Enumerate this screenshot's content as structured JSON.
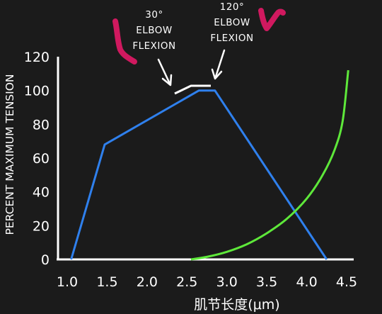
{
  "chart_data": {
    "type": "line",
    "title": "",
    "xlabel": "肌节长度(μm)",
    "ylabel": "PERCENT MAXIMUM TENSION",
    "xlim": [
      1.0,
      4.5
    ],
    "ylim": [
      0,
      120
    ],
    "x_ticks": [
      "1.0",
      "1.5",
      "2.0",
      "2.5",
      "3.0",
      "3.5",
      "4.0",
      "4.5"
    ],
    "y_ticks": [
      "0",
      "20",
      "40",
      "60",
      "80",
      "100",
      "120"
    ],
    "grid": false,
    "series": [
      {
        "color": "#2f80ed",
        "x": [
          1.05,
          1.47,
          2.65,
          2.85,
          4.25
        ],
        "y": [
          0,
          68,
          100,
          100,
          0
        ]
      },
      {
        "color": "#5ee83a",
        "x": [
          2.55,
          2.75,
          3.0,
          3.25,
          3.5,
          3.75,
          4.0,
          4.2,
          4.35,
          4.45,
          4.52
        ],
        "y": [
          0,
          1.5,
          4.5,
          9,
          15.5,
          24,
          36,
          50,
          65,
          82,
          112
        ]
      }
    ],
    "annotations": [
      {
        "lines": [
          "30°",
          "ELBOW",
          "FLEXION"
        ]
      },
      {
        "lines": [
          "120°",
          "ELBOW",
          "FLEXION"
        ]
      }
    ]
  },
  "colors": {
    "background": "#1b1b1b",
    "axis": "#ffffff",
    "marker": "#d0195f"
  }
}
